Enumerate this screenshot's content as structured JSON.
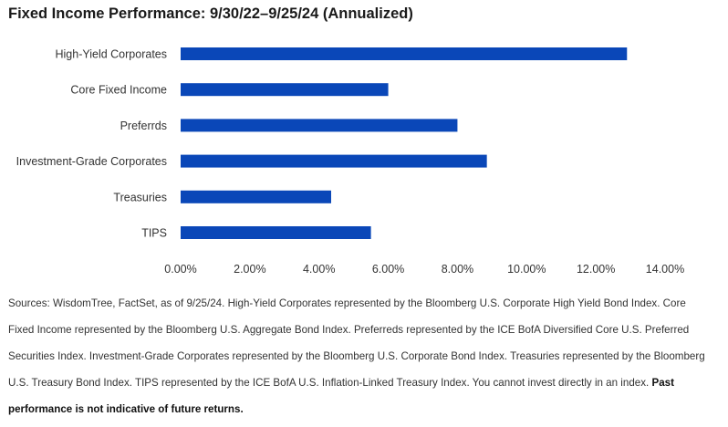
{
  "chart_data": {
    "type": "bar",
    "orientation": "horizontal",
    "title": "Fixed Income Performance: 9/30/22–9/25/24 (Annualized)",
    "categories": [
      "High-Yield Corporates",
      "Core Fixed Income",
      "Preferrds",
      "Investment-Grade Corporates",
      "Treasuries",
      "TIPS"
    ],
    "values": [
      12.9,
      6.0,
      8.0,
      8.85,
      4.35,
      5.5
    ],
    "xlim": [
      0,
      14
    ],
    "x_ticks": [
      "0.00%",
      "2.00%",
      "4.00%",
      "6.00%",
      "8.00%",
      "10.00%",
      "12.00%",
      "14.00%"
    ],
    "grid": false,
    "legend": "none",
    "bar_color": "#0a47b8"
  },
  "notes": {
    "text": "Sources: WisdomTree, FactSet, as of 9/25/24. High-Yield Corporates represented by the Bloomberg U.S. Corporate High Yield Bond Index. Core Fixed Income represented by the Bloomberg U.S. Aggregate Bond Index. Preferreds represented by the ICE BofA Diversified Core U.S. Preferred Securities Index. Investment-Grade Corporates represented by the Bloomberg U.S. Corporate Bond Index. Treasuries represented by the Bloomberg U.S. Treasury Bond Index. TIPS represented by the ICE BofA U.S. Inflation-Linked Treasury Index. You cannot invest directly in an index.",
    "bold": "Past performance is not indicative of future returns."
  }
}
